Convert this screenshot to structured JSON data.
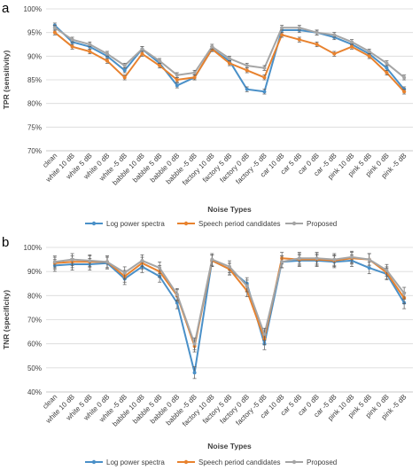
{
  "chart_data": [
    {
      "panel": "a",
      "type": "line",
      "xlabel": "Noise Types",
      "ylabel": "TPR (sensitivity)",
      "ylim": [
        70,
        100
      ],
      "yticks": [
        "70%",
        "75%",
        "80%",
        "85%",
        "90%",
        "95%",
        "100%"
      ],
      "grid": true,
      "legend_position": "bottom",
      "categories": [
        "clean",
        "white 10 dB",
        "white 5 dB",
        "white 0 dB",
        "white -5 dB",
        "babble 10 dB",
        "babble 5 dB",
        "babble 0 dB",
        "babble -5 dB",
        "factory 10 dB",
        "factory 5 dB",
        "factory 0 dB",
        "factory -5 dB",
        "car 10 dB",
        "car 5 dB",
        "car 0 dB",
        "car -5 dB",
        "pink 10 dB",
        "pink 5 dB",
        "pink 0 dB",
        "pink -5 dB"
      ],
      "series": [
        {
          "name": "Log power spectra",
          "color": "#4a90c8",
          "values": [
            96.5,
            93.0,
            92.0,
            90.0,
            87.0,
            91.5,
            88.5,
            83.8,
            85.5,
            91.5,
            89.0,
            83.0,
            82.5,
            95.5,
            95.5,
            95.0,
            94.0,
            92.5,
            90.5,
            87.5,
            83.0
          ]
        },
        {
          "name": "Speech period candidates",
          "color": "#e8822e",
          "values": [
            95.0,
            92.0,
            91.0,
            89.0,
            85.5,
            90.5,
            88.0,
            85.0,
            85.5,
            91.5,
            88.5,
            87.0,
            85.5,
            94.5,
            93.5,
            92.5,
            90.5,
            92.0,
            90.0,
            86.5,
            82.5
          ]
        },
        {
          "name": "Proposed",
          "color": "#a5a5a5",
          "values": [
            96.0,
            93.5,
            92.5,
            90.5,
            88.0,
            91.5,
            89.0,
            86.0,
            86.5,
            92.0,
            89.5,
            88.0,
            87.5,
            96.0,
            96.0,
            95.0,
            94.5,
            93.0,
            91.0,
            88.5,
            85.5
          ]
        }
      ]
    },
    {
      "panel": "b",
      "type": "line",
      "xlabel": "Noise Types",
      "ylabel": "TNR (specificity)",
      "ylim": [
        40,
        100
      ],
      "yticks": [
        "40%",
        "50%",
        "60%",
        "70%",
        "80%",
        "90%",
        "100%"
      ],
      "grid": true,
      "legend_position": "bottom",
      "categories": [
        "clean",
        "white 10 dB",
        "white 5 dB",
        "white 0 dB",
        "white -5 dB",
        "babble 10 dB",
        "babble 5 dB",
        "babble 0 dB",
        "babble -5 dB",
        "factory 10 dB",
        "factory 5 dB",
        "factory 0 dB",
        "factory -5 dB",
        "car 10 dB",
        "car 5 dB",
        "car 0 dB",
        "car -5 dB",
        "pink 10 dB",
        "pink 5 dB",
        "pink 0 dB",
        "pink -5 dB"
      ],
      "series": [
        {
          "name": "Log power spectra",
          "color": "#4a90c8",
          "values": [
            92.5,
            93.0,
            93.0,
            93.5,
            87.0,
            92.0,
            88.0,
            77.0,
            48.0,
            94.5,
            91.0,
            85.0,
            60.0,
            94.0,
            94.5,
            94.5,
            94.0,
            94.5,
            91.5,
            89.0,
            77.0
          ]
        },
        {
          "name": "Speech period candidates",
          "color": "#e8822e",
          "values": [
            93.5,
            94.0,
            94.0,
            94.0,
            88.0,
            93.5,
            90.0,
            80.0,
            59.0,
            94.5,
            91.0,
            82.0,
            62.0,
            95.5,
            95.0,
            95.0,
            94.5,
            95.5,
            95.0,
            89.5,
            79.0
          ]
        },
        {
          "name": "Proposed",
          "color": "#a5a5a5",
          "values": [
            94.0,
            95.0,
            94.5,
            94.0,
            89.5,
            94.5,
            91.5,
            80.5,
            60.0,
            95.0,
            92.0,
            84.0,
            64.0,
            94.0,
            95.5,
            95.5,
            95.0,
            96.0,
            95.0,
            90.5,
            81.0
          ]
        }
      ]
    }
  ]
}
